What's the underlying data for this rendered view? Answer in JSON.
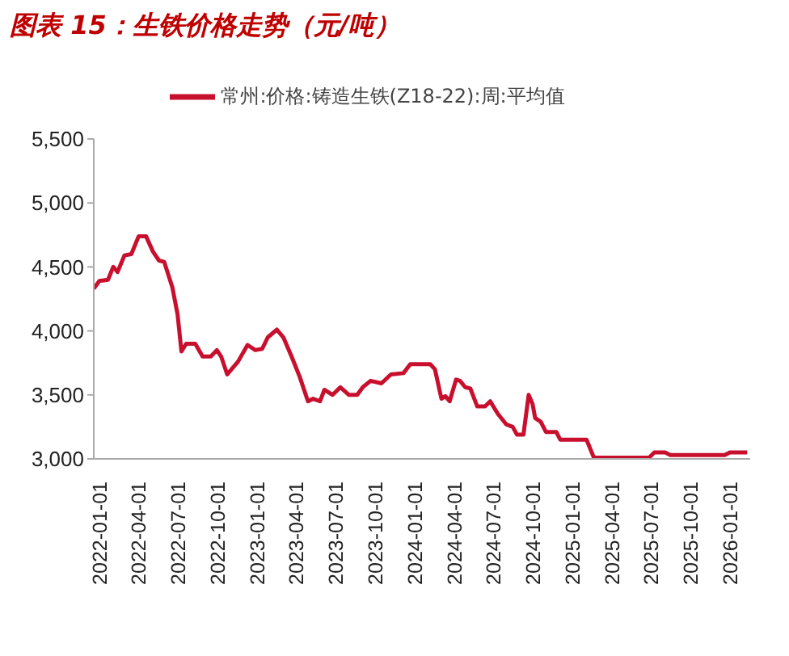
{
  "chart_data": {
    "type": "line",
    "title": "图表 15：生铁价格走势（元/吨）",
    "x": [
      "2022-01-01",
      "2022-01-14",
      "2022-02-03",
      "2022-02-15",
      "2022-02-25",
      "2022-03-13",
      "2022-03-29",
      "2022-04-15",
      "2022-05-02",
      "2022-05-18",
      "2022-06-01",
      "2022-06-13",
      "2022-07-02",
      "2022-07-14",
      "2022-07-23",
      "2022-08-03",
      "2022-08-24",
      "2022-09-10",
      "2022-09-29",
      "2022-10-13",
      "2022-10-23",
      "2022-11-06",
      "2022-12-01",
      "2022-12-23",
      "2023-01-10",
      "2023-01-26",
      "2023-02-08",
      "2023-03-01",
      "2023-03-16",
      "2023-04-04",
      "2023-04-23",
      "2023-05-12",
      "2023-05-24",
      "2023-06-09",
      "2023-06-19",
      "2023-07-08",
      "2023-07-26",
      "2023-08-15",
      "2023-09-03",
      "2023-09-16",
      "2023-10-04",
      "2023-10-29",
      "2023-11-20",
      "2023-12-19",
      "2024-01-04",
      "2024-02-19",
      "2024-03-01",
      "2024-03-16",
      "2024-03-25",
      "2024-04-04",
      "2024-04-19",
      "2024-04-28",
      "2024-05-10",
      "2024-05-22",
      "2024-06-07",
      "2024-06-25",
      "2024-07-07",
      "2024-07-25",
      "2024-08-13",
      "2024-08-28",
      "2024-09-07",
      "2024-09-22",
      "2024-10-04",
      "2024-10-13",
      "2024-10-19",
      "2024-11-01",
      "2024-11-13",
      "2024-12-07",
      "2024-12-16",
      "2025-02-15",
      "2025-03-04",
      "2025-07-10",
      "2025-07-22",
      "2025-08-16",
      "2025-08-28",
      "2026-01-01",
      "2026-01-13",
      "2026-02-22"
    ],
    "series": [
      {
        "name": "常州:价格:铸造生铁(Z18-22):周:平均值",
        "color": "#c8102e",
        "values": [
          4330,
          4390,
          4400,
          4500,
          4460,
          4590,
          4600,
          4740,
          4740,
          4620,
          4550,
          4540,
          4340,
          4130,
          3840,
          3900,
          3900,
          3800,
          3800,
          3850,
          3800,
          3660,
          3760,
          3890,
          3850,
          3860,
          3950,
          4010,
          3950,
          3800,
          3640,
          3450,
          3470,
          3450,
          3540,
          3500,
          3560,
          3500,
          3500,
          3560,
          3610,
          3590,
          3660,
          3670,
          3740,
          3740,
          3700,
          3470,
          3490,
          3450,
          3620,
          3610,
          3560,
          3550,
          3410,
          3410,
          3450,
          3350,
          3270,
          3250,
          3190,
          3190,
          3500,
          3430,
          3320,
          3290,
          3210,
          3210,
          3150,
          3150,
          3010,
          3010,
          3050,
          3050,
          3030,
          3030,
          3050,
          3050
        ]
      }
    ],
    "xlim": [
      "2022-01-01",
      "2026-03-01"
    ],
    "xticks": [
      "2022-01-01",
      "2022-04-01",
      "2022-07-01",
      "2022-10-01",
      "2023-01-01",
      "2023-04-01",
      "2023-07-01",
      "2023-10-01",
      "2024-01-01",
      "2024-04-01",
      "2024-07-01",
      "2024-10-01",
      "2025-01-01",
      "2025-04-01",
      "2025-07-01",
      "2025-10-01",
      "2026-01-01"
    ],
    "ylim": [
      3000,
      5500
    ],
    "yticks": [
      {
        "value": 3000,
        "label": "3,000"
      },
      {
        "value": 3500,
        "label": "3,500"
      },
      {
        "value": 4000,
        "label": "4,000"
      },
      {
        "value": 4500,
        "label": "4,500"
      },
      {
        "value": 5000,
        "label": "5,000"
      },
      {
        "value": 5500,
        "label": "5,500"
      }
    ],
    "grid": false,
    "legend": "top",
    "marker": "none",
    "line_style": "solid"
  }
}
